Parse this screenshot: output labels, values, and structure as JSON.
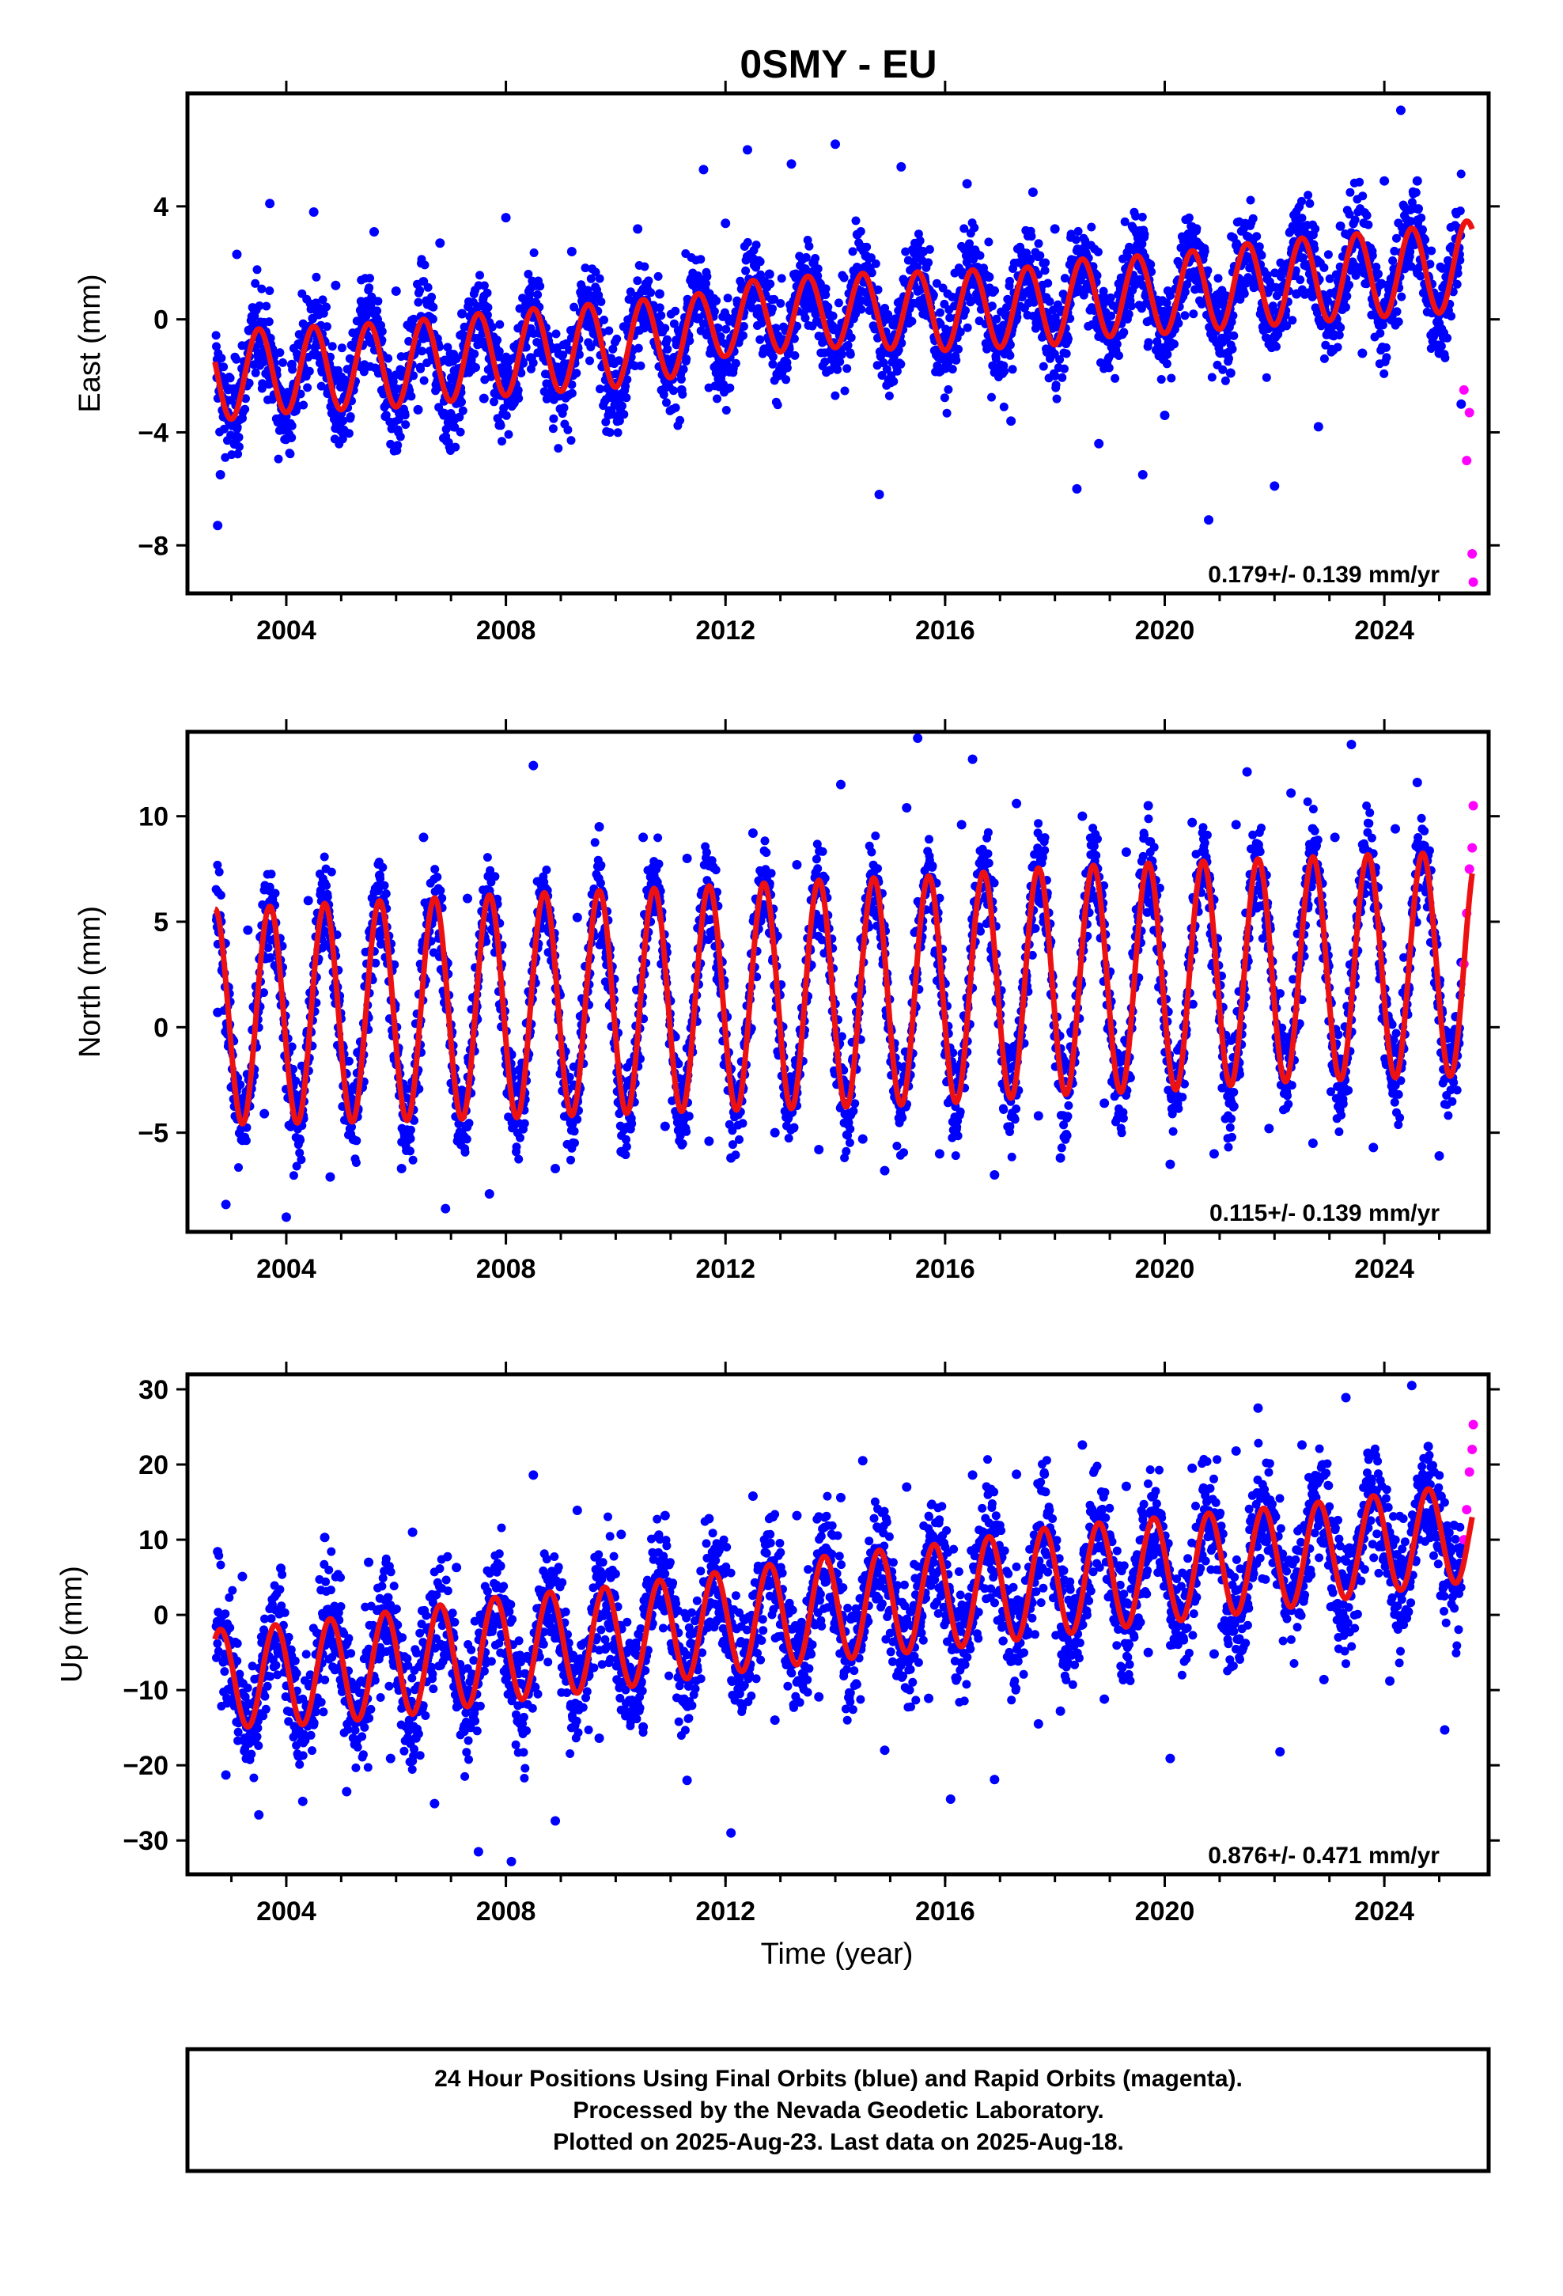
{
  "chart_data": {
    "type": "scatter",
    "title": "0SMY - EU",
    "xlabel": "Time (year)",
    "xlim": [
      2002.2,
      2025.9
    ],
    "x_ticks": [
      "2004",
      "2008",
      "2012",
      "2016",
      "2020",
      "2024"
    ],
    "legend": "none",
    "colors": {
      "final_orbits": "#0000ff",
      "rapid_orbits": "#ff00ff",
      "model_fit": "#ee1111"
    },
    "panels": [
      {
        "name": "east",
        "ylabel": "East (mm)",
        "ylim": [
          -9.7,
          8.0
        ],
        "y_ticks": [
          "4",
          "0",
          "−4",
          "−8"
        ],
        "y_tick_values": [
          4,
          0,
          -4,
          -8
        ],
        "rate_label": "0.179+/- 0.139 mm/yr",
        "model_fit": {
          "x": [
            2002.7,
            2004.0,
            2006.0,
            2008.0,
            2010.0,
            2011.5,
            2012.0,
            2014.0,
            2016.0,
            2018.0,
            2018.2,
            2020.0,
            2022.0,
            2024.0,
            2025.6
          ],
          "mean": [
            -2.0,
            -1.8,
            -1.6,
            -1.2,
            -0.9,
            -0.5,
            0.0,
            0.3,
            0.3,
            0.5,
            0.7,
            0.9,
            1.3,
            1.6,
            1.9
          ],
          "annual_amplitude": [
            1.6,
            1.5,
            1.5,
            1.5,
            1.5,
            1.4,
            1.3,
            1.3,
            1.4,
            1.4,
            1.4,
            1.4,
            1.5,
            1.5,
            1.6
          ]
        },
        "final_orbits": {
          "x": [
            2002.75,
            2002.8,
            2003.1,
            2003.4,
            2003.7,
            2004.1,
            2004.5,
            2004.9,
            2005.2,
            2005.6,
            2006.0,
            2006.4,
            2006.8,
            2007.2,
            2007.6,
            2008.0,
            2008.4,
            2008.8,
            2009.2,
            2009.6,
            2010.0,
            2010.4,
            2010.8,
            2011.2,
            2011.6,
            2012.0,
            2012.4,
            2012.8,
            2013.2,
            2013.6,
            2014.0,
            2014.4,
            2014.8,
            2015.2,
            2015.6,
            2016.0,
            2016.4,
            2016.8,
            2017.2,
            2017.6,
            2018.0,
            2018.4,
            2018.8,
            2019.2,
            2019.6,
            2020.0,
            2020.4,
            2020.8,
            2021.2,
            2021.6,
            2022.0,
            2022.4,
            2022.8,
            2023.2,
            2023.6,
            2024.0,
            2024.3,
            2024.6,
            2025.0,
            2025.4
          ],
          "y": [
            -7.3,
            -5.5,
            2.3,
            0.4,
            4.1,
            -1.6,
            3.8,
            1.2,
            -2.5,
            3.1,
            1.0,
            -3.2,
            2.7,
            0.2,
            -2.8,
            3.6,
            0.4,
            -2.7,
            2.4,
            -0.5,
            -2.9,
            3.2,
            0.9,
            -2.5,
            5.3,
            3.4,
            6.0,
            1.6,
            5.5,
            2.0,
            6.2,
            3.0,
            -6.2,
            5.4,
            2.4,
            -1.7,
            4.8,
            1.5,
            -3.6,
            4.5,
            3.2,
            -6.0,
            -4.4,
            0.6,
            -5.5,
            -3.4,
            2.3,
            -7.1,
            -1.9,
            2.8,
            -5.9,
            0.9,
            -3.8,
            3.3,
            -1.2,
            4.9,
            7.4,
            4.9,
            -1.2,
            -3.0
          ]
        },
        "rapid_orbits": {
          "x": [
            2025.45,
            2025.5,
            2025.55,
            2025.6,
            2025.62
          ],
          "y": [
            -2.5,
            -5.0,
            -3.3,
            -8.3,
            -9.3
          ]
        }
      },
      {
        "name": "north",
        "ylabel": "North (mm)",
        "ylim": [
          -9.7,
          14.0
        ],
        "y_ticks": [
          "10",
          "5",
          "0",
          "−5"
        ],
        "y_tick_values": [
          10,
          5,
          0,
          -5
        ],
        "rate_label": "0.115+/- 0.139 mm/yr",
        "model_fit": {
          "x": [
            2002.7,
            2005.0,
            2008.0,
            2011.0,
            2014.0,
            2016.0,
            2018.0,
            2020.0,
            2022.0,
            2024.0,
            2025.6
          ],
          "mean": [
            0.5,
            0.7,
            1.0,
            1.3,
            1.6,
            1.8,
            2.2,
            2.4,
            2.7,
            2.9,
            3.0
          ],
          "annual_amplitude": [
            5.1,
            5.2,
            5.3,
            5.3,
            5.4,
            5.4,
            5.4,
            5.4,
            5.3,
            5.3,
            5.3
          ]
        },
        "final_orbits": {
          "x": [
            2002.75,
            2002.9,
            2003.3,
            2003.6,
            2004.0,
            2004.4,
            2004.8,
            2005.3,
            2005.7,
            2006.1,
            2006.5,
            2006.9,
            2007.3,
            2007.7,
            2008.1,
            2008.5,
            2008.9,
            2009.3,
            2009.7,
            2010.1,
            2010.5,
            2010.9,
            2011.3,
            2011.7,
            2012.1,
            2012.5,
            2012.9,
            2013.3,
            2013.7,
            2014.1,
            2014.5,
            2014.9,
            2015.3,
            2015.5,
            2015.9,
            2016.3,
            2016.5,
            2016.9,
            2017.3,
            2017.7,
            2018.1,
            2018.5,
            2018.9,
            2019.3,
            2019.7,
            2020.1,
            2020.5,
            2020.9,
            2021.3,
            2021.5,
            2021.9,
            2022.3,
            2022.7,
            2023.1,
            2023.4,
            2023.8,
            2024.2,
            2024.6,
            2025.0,
            2025.3
          ],
          "y": [
            0.7,
            -8.4,
            4.6,
            -4.1,
            -9.0,
            6.0,
            -7.1,
            -1.2,
            7.2,
            -6.7,
            9.0,
            -8.6,
            6.1,
            -7.9,
            -1.3,
            12.4,
            -6.7,
            5.2,
            9.5,
            -5.9,
            9.0,
            -4.7,
            8.0,
            -5.4,
            -6.2,
            9.2,
            -5.0,
            7.7,
            -5.8,
            11.5,
            -5.3,
            -6.8,
            10.4,
            13.7,
            -6.0,
            9.6,
            12.7,
            -7.0,
            10.6,
            -4.2,
            -6.2,
            10.0,
            -3.6,
            8.3,
            10.5,
            -6.5,
            9.7,
            -6.0,
            9.6,
            12.1,
            -4.8,
            11.1,
            -5.5,
            9.0,
            13.4,
            -5.7,
            9.4,
            11.6,
            -6.1,
            0.5
          ]
        },
        "rapid_orbits": {
          "x": [
            2025.45,
            2025.5,
            2025.55,
            2025.6,
            2025.62
          ],
          "y": [
            3.0,
            5.4,
            7.5,
            8.5,
            10.5
          ]
        }
      },
      {
        "name": "up",
        "ylabel": "Up (mm)",
        "ylim": [
          -34.5,
          32.0
        ],
        "y_ticks": [
          "30",
          "20",
          "10",
          "0",
          "−10",
          "−20",
          "−30"
        ],
        "y_tick_values": [
          30,
          20,
          10,
          0,
          -10,
          -20,
          -30
        ],
        "rate_label": "0.876+/- 0.471 mm/yr",
        "model_fit": {
          "x": [
            2002.7,
            2004.0,
            2006.0,
            2008.0,
            2010.0,
            2012.0,
            2014.0,
            2016.0,
            2018.0,
            2020.0,
            2022.0,
            2024.0,
            2025.6
          ],
          "mean": [
            -8.5,
            -8.0,
            -6.5,
            -4.5,
            -3.0,
            -1.0,
            1.0,
            2.5,
            4.5,
            6.0,
            7.5,
            9.5,
            11.0
          ],
          "annual_amplitude": [
            6.5,
            6.8,
            7.0,
            7.0,
            6.8,
            6.8,
            7.0,
            7.0,
            7.2,
            7.0,
            6.8,
            6.5,
            6.5
          ]
        },
        "final_orbits": {
          "x": [
            2002.75,
            2002.9,
            2003.2,
            2003.5,
            2003.9,
            2004.3,
            2004.7,
            2005.1,
            2005.5,
            2005.9,
            2006.3,
            2006.7,
            2007.1,
            2007.5,
            2007.9,
            2008.1,
            2008.5,
            2008.9,
            2009.3,
            2009.7,
            2010.1,
            2010.5,
            2010.9,
            2011.3,
            2011.7,
            2012.1,
            2012.5,
            2012.9,
            2013.3,
            2013.7,
            2014.1,
            2014.5,
            2014.9,
            2015.3,
            2015.7,
            2016.1,
            2016.5,
            2016.9,
            2017.3,
            2017.7,
            2018.1,
            2018.5,
            2018.9,
            2019.3,
            2019.7,
            2020.1,
            2020.5,
            2020.9,
            2021.3,
            2021.7,
            2022.1,
            2022.5,
            2022.9,
            2023.3,
            2023.7,
            2024.1,
            2024.5,
            2024.8,
            2025.1,
            2025.35
          ],
          "y": [
            8.4,
            -21.3,
            5.1,
            -26.6,
            6.2,
            -24.8,
            10.3,
            -23.5,
            7.0,
            -19.1,
            11.0,
            -25.1,
            6.3,
            -31.5,
            6.5,
            -32.8,
            18.6,
            -27.4,
            13.9,
            -16.4,
            10.7,
            -14.9,
            13.2,
            -22.0,
            12.8,
            -29.0,
            15.8,
            -14.0,
            13.2,
            -10.9,
            15.6,
            20.5,
            -18.0,
            17.0,
            -11.1,
            -24.5,
            18.6,
            -21.9,
            18.7,
            -14.5,
            -12.8,
            22.6,
            -11.2,
            17.1,
            -5.0,
            -19.1,
            19.5,
            -5.2,
            21.8,
            27.5,
            -18.2,
            22.6,
            -8.6,
            28.9,
            21.5,
            -8.8,
            30.5,
            22.4,
            -15.3,
            6.5
          ]
        },
        "rapid_orbits": {
          "x": [
            2025.45,
            2025.5,
            2025.55,
            2025.6,
            2025.62
          ],
          "y": [
            10.0,
            14.0,
            19.0,
            22.0,
            25.3
          ]
        }
      }
    ]
  },
  "footer": {
    "line1": "24 Hour Positions Using Final Orbits (blue) and Rapid Orbits (magenta).",
    "line2": "Processed by the Nevada Geodetic Laboratory.",
    "line3": "Plotted on 2025-Aug-23. Last data on 2025-Aug-18."
  }
}
